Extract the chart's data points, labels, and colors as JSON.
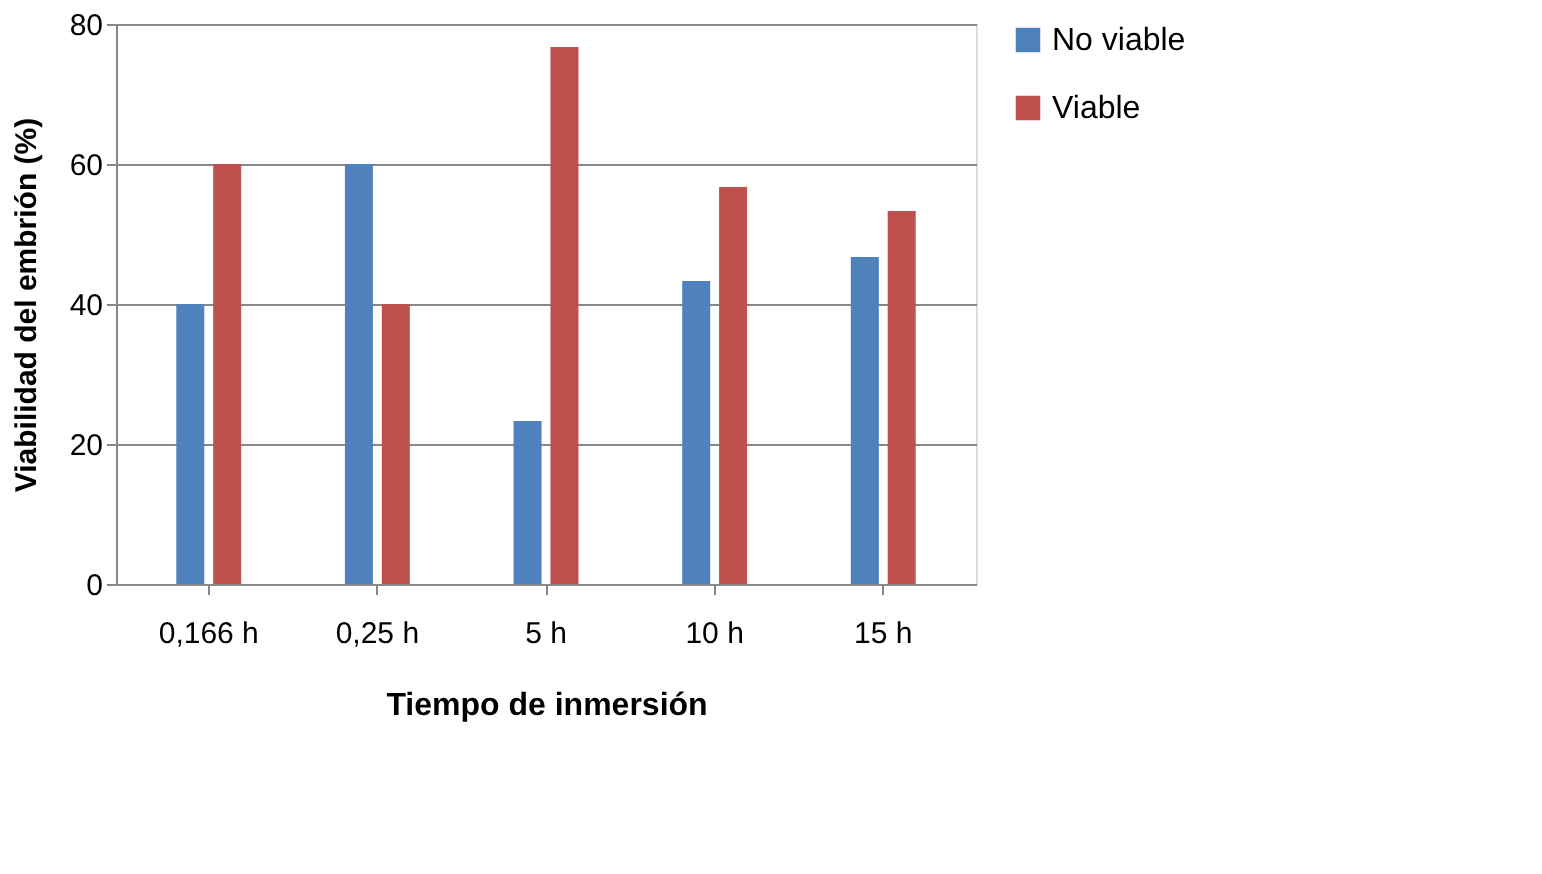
{
  "chart_data": {
    "type": "bar",
    "xlabel": "Tiempo de inmersión",
    "ylabel": "Viabilidad del embrión (%)",
    "categories": [
      "0,166 h",
      "0,25 h",
      "5 h",
      "10 h",
      "15 h"
    ],
    "series": [
      {
        "name": "No viable",
        "color": "#4f81bd",
        "values": [
          40,
          60,
          23.3,
          43.3,
          46.7
        ]
      },
      {
        "name": "Viable",
        "color": "#c0504d",
        "values": [
          60,
          40,
          76.7,
          56.7,
          53.3
        ]
      }
    ],
    "ylim": [
      0,
      80
    ],
    "yticks": [
      0,
      20,
      40,
      60,
      80
    ],
    "grid": "y",
    "legend": "right"
  }
}
